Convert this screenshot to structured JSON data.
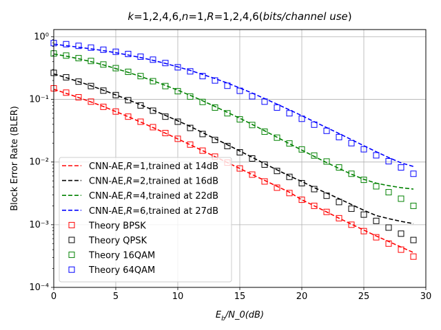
{
  "chart_data": {
    "type": "line",
    "title": "$k$=1,2,4,6,$n$=1,$R$=1,2,4,6($bits/channel\\ use$)",
    "xlabel": "$E_b/N_0(dB)$",
    "ylabel": "Block Error Rate (BLER)",
    "xlim": [
      0,
      30
    ],
    "ylim": [
      0.0001,
      1.3
    ],
    "yscale": "log",
    "grid": true,
    "legend_position": "lower-left",
    "x_ticks": [
      0,
      5,
      10,
      15,
      20,
      25,
      30
    ],
    "x_tick_labels": [
      "0",
      "5",
      "10",
      "15",
      "20",
      "25",
      "30"
    ],
    "y_ticks": [
      0.0001,
      0.001,
      0.01,
      0.1,
      1
    ],
    "y_tick_labels": [
      "10⁻⁴",
      "10⁻³",
      "10⁻²",
      "10⁻¹",
      "10⁰"
    ],
    "curve_x": [
      0,
      1,
      2,
      3,
      4,
      5,
      6,
      7,
      8,
      9,
      10,
      11,
      12,
      13,
      14,
      15,
      16,
      17,
      18,
      19,
      20,
      21,
      22,
      23,
      24,
      25,
      26,
      27,
      28,
      29
    ],
    "theory_x": [
      0,
      1,
      2,
      3,
      4,
      5,
      6,
      7,
      8,
      9,
      10,
      11,
      12,
      13,
      14,
      15,
      16,
      17,
      18,
      19,
      20,
      21,
      22,
      23,
      24,
      25,
      26,
      27,
      28,
      29
    ],
    "curves": [
      {
        "name": "CNN-AE,$R$=1,trained at 14dB",
        "color": "#ff0000",
        "values": [
          0.145,
          0.125,
          0.107,
          0.091,
          0.077,
          0.064,
          0.053,
          0.0435,
          0.0355,
          0.0289,
          0.0234,
          0.0189,
          0.0152,
          0.0122,
          0.0098,
          0.0079,
          0.0063,
          0.0051,
          0.0041,
          0.0033,
          0.0025,
          0.002,
          0.0016,
          0.00127,
          0.00102,
          0.00082,
          0.00066,
          0.00054,
          0.00044,
          0.00036
        ]
      },
      {
        "name": "CNN-AE,$R$=2,trained at 16dB",
        "color": "#000000",
        "values": [
          0.255,
          0.222,
          0.192,
          0.165,
          0.14,
          0.118,
          0.0985,
          0.082,
          0.0675,
          0.0555,
          0.0455,
          0.037,
          0.0295,
          0.0236,
          0.0189,
          0.015,
          0.0119,
          0.0094,
          0.0075,
          0.006,
          0.0049,
          0.0039,
          0.0032,
          0.0026,
          0.0021,
          0.0017,
          0.0014,
          0.00125,
          0.00113,
          0.00104
        ]
      },
      {
        "name": "CNN-AE,$R$=4,trained at 22dB",
        "color": "#008000",
        "values": [
          0.53,
          0.49,
          0.445,
          0.4,
          0.355,
          0.31,
          0.27,
          0.232,
          0.198,
          0.167,
          0.14,
          0.116,
          0.095,
          0.077,
          0.062,
          0.05,
          0.0398,
          0.0315,
          0.0249,
          0.0196,
          0.0155,
          0.0123,
          0.0098,
          0.0079,
          0.0064,
          0.0053,
          0.0046,
          0.0042,
          0.0039,
          0.0037
        ]
      },
      {
        "name": "CNN-AE,$R$=6,trained at 27dB",
        "color": "#0000ff",
        "values": [
          0.76,
          0.72,
          0.68,
          0.64,
          0.6,
          0.555,
          0.51,
          0.465,
          0.42,
          0.375,
          0.33,
          0.29,
          0.25,
          0.215,
          0.182,
          0.152,
          0.126,
          0.103,
          0.084,
          0.068,
          0.055,
          0.044,
          0.0355,
          0.0285,
          0.0228,
          0.0182,
          0.0146,
          0.0118,
          0.0097,
          0.0085
        ]
      }
    ],
    "theory": [
      {
        "name": "Theory BPSK",
        "color": "#ff0000",
        "values": [
          0.15,
          0.128,
          0.108,
          0.092,
          0.076,
          0.064,
          0.053,
          0.044,
          0.036,
          0.029,
          0.0235,
          0.019,
          0.0152,
          0.0122,
          0.0098,
          0.0079,
          0.0063,
          0.0049,
          0.0039,
          0.0032,
          0.0025,
          0.002,
          0.0016,
          0.00127,
          0.001,
          0.00079,
          0.00063,
          0.0005,
          0.0004,
          0.00031
        ]
      },
      {
        "name": "Theory QPSK",
        "color": "#000000",
        "values": [
          0.265,
          0.225,
          0.192,
          0.163,
          0.138,
          0.117,
          0.097,
          0.08,
          0.066,
          0.053,
          0.044,
          0.035,
          0.028,
          0.0225,
          0.018,
          0.0143,
          0.0114,
          0.0091,
          0.0072,
          0.0058,
          0.0046,
          0.0037,
          0.0029,
          0.0023,
          0.0018,
          0.00145,
          0.00115,
          0.0009,
          0.00072,
          0.00057
        ]
      },
      {
        "name": "Theory 16QAM",
        "color": "#008000",
        "values": [
          0.54,
          0.5,
          0.455,
          0.41,
          0.36,
          0.315,
          0.275,
          0.235,
          0.195,
          0.163,
          0.135,
          0.111,
          0.091,
          0.074,
          0.06,
          0.048,
          0.039,
          0.0305,
          0.0245,
          0.0198,
          0.0159,
          0.0127,
          0.0102,
          0.0082,
          0.0065,
          0.0052,
          0.0041,
          0.0033,
          0.0026,
          0.002
        ]
      },
      {
        "name": "Theory 64QAM",
        "color": "#0000ff",
        "values": [
          0.79,
          0.76,
          0.715,
          0.67,
          0.62,
          0.575,
          0.53,
          0.48,
          0.43,
          0.38,
          0.325,
          0.28,
          0.235,
          0.2,
          0.165,
          0.137,
          0.112,
          0.092,
          0.074,
          0.06,
          0.049,
          0.0395,
          0.0315,
          0.025,
          0.02,
          0.016,
          0.0128,
          0.0103,
          0.0082,
          0.0065
        ]
      }
    ]
  }
}
